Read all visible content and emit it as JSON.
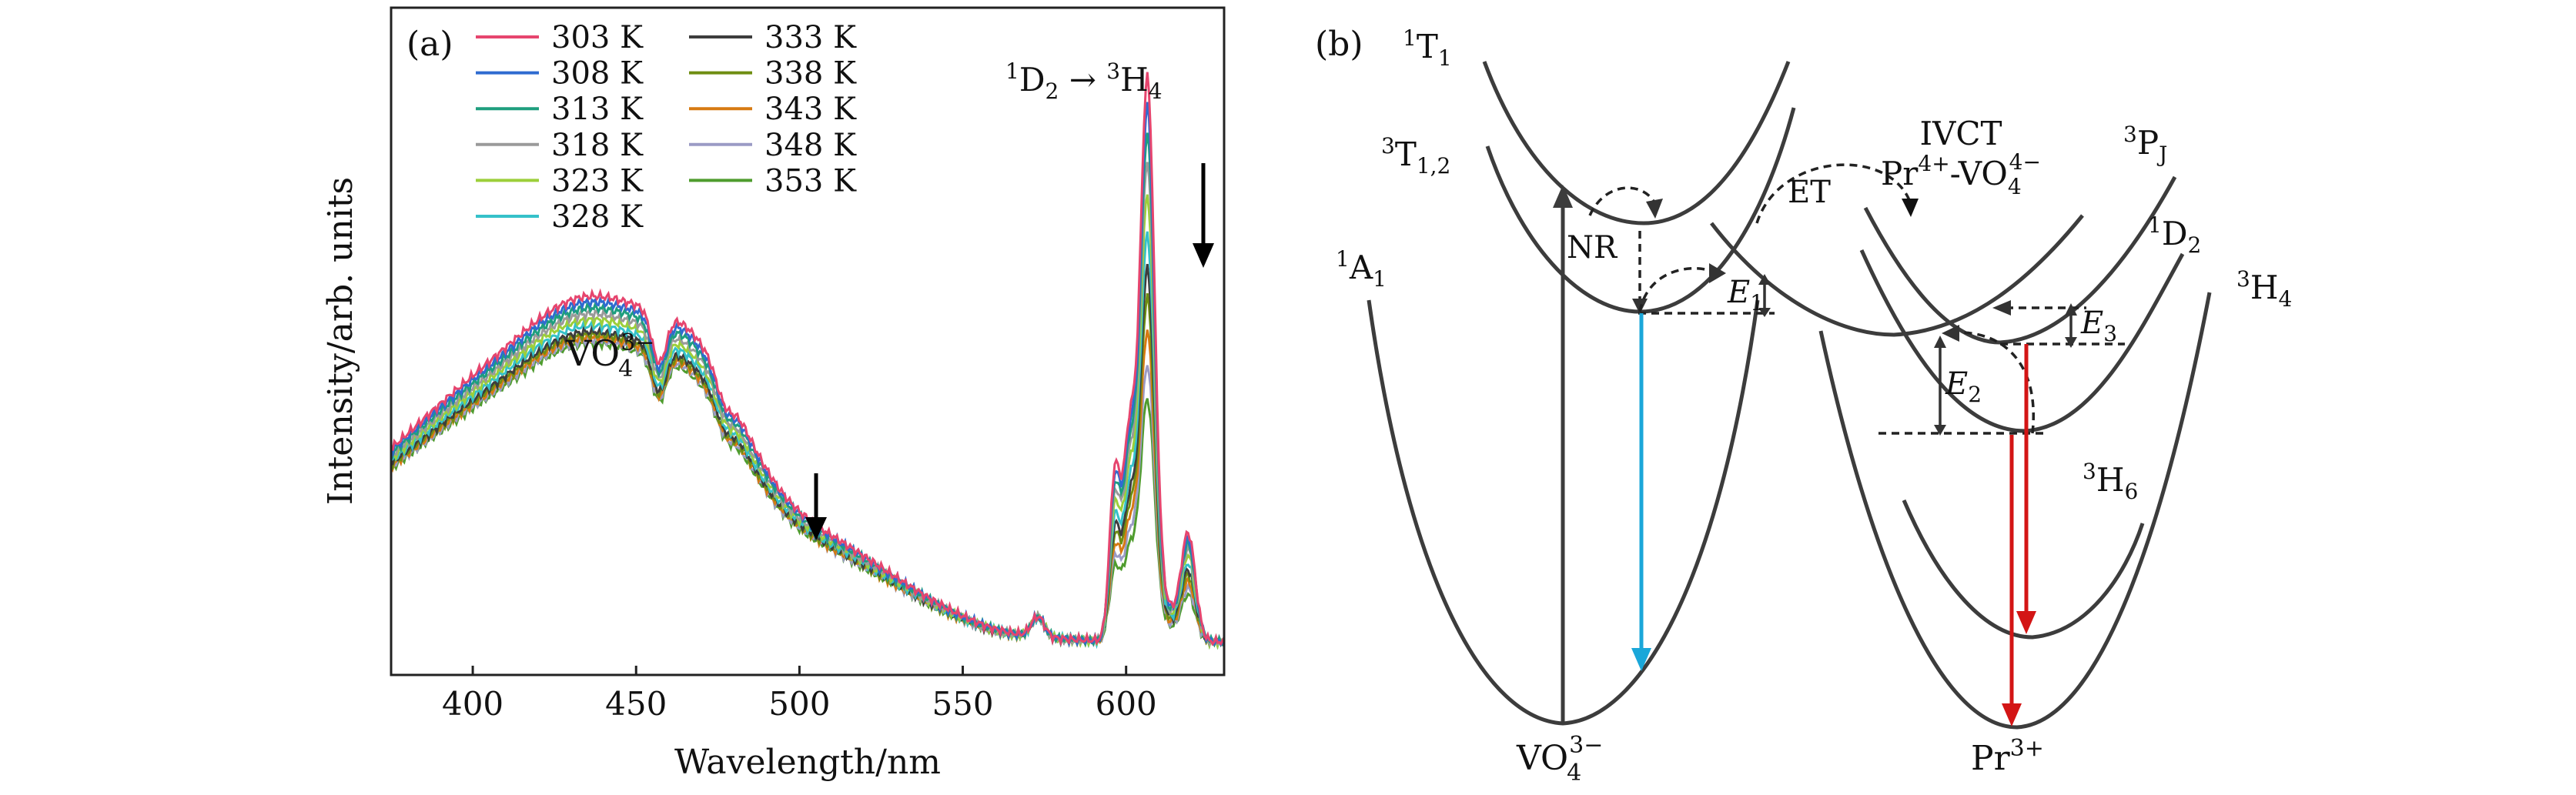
{
  "colors": {
    "303 K": "#e6456e",
    "308 K": "#2f6bd0",
    "313 K": "#1e9e7e",
    "318 K": "#9a9a9a",
    "323 K": "#9ccf3a",
    "328 K": "#35c1c9",
    "333 K": "#3d3d3d",
    "338 K": "#6f8e12",
    "343 K": "#d77a12",
    "348 K": "#9b9bc5",
    "353 K": "#4f9c2e",
    "blue_arrow": "#1aa7d9",
    "red_arrow": "#d31515"
  },
  "chart_data": [
    {
      "type": "line",
      "panel_label": "(a)",
      "xlabel": "Wavelength/nm",
      "ylabel": "Intensity/arb. units",
      "xlim": [
        375,
        630
      ],
      "ylim": [
        0,
        1.0
      ],
      "xticks": [
        400,
        450,
        500,
        550,
        600
      ],
      "yticks_shown": false,
      "grid": false,
      "legend": {
        "placement": "top-left",
        "columns": [
          [
            "303 K",
            "308 K",
            "313 K",
            "318 K",
            "323 K",
            "328 K"
          ],
          [
            "333 K",
            "338 K",
            "343 K",
            "348 K",
            "353 K"
          ]
        ]
      },
      "annotations": [
        {
          "text": "VO₄³⁻",
          "near_x": 440
        },
        {
          "text": "¹D₂ → ³H₄",
          "near_x": 606
        },
        {
          "text": "↓",
          "near_x": 505,
          "meaning": "intensity decreases with temperature"
        },
        {
          "text": "↓",
          "near_x": 619,
          "meaning": "intensity decreases with temperature"
        }
      ],
      "series": [
        {
          "name": "303 K",
          "peak_vo4": 0.51,
          "peak_606": 1.0
        },
        {
          "name": "308 K",
          "peak_vo4": 0.5,
          "peak_606": 0.95
        },
        {
          "name": "313 K",
          "peak_vo4": 0.49,
          "peak_606": 0.9
        },
        {
          "name": "318 K",
          "peak_vo4": 0.48,
          "peak_606": 0.85
        },
        {
          "name": "323 K",
          "peak_vo4": 0.47,
          "peak_606": 0.79
        },
        {
          "name": "328 K",
          "peak_vo4": 0.46,
          "peak_606": 0.72
        },
        {
          "name": "333 K",
          "peak_vo4": 0.45,
          "peak_606": 0.66
        },
        {
          "name": "338 K",
          "peak_vo4": 0.445,
          "peak_606": 0.61
        },
        {
          "name": "343 K",
          "peak_vo4": 0.44,
          "peak_606": 0.55
        },
        {
          "name": "348 K",
          "peak_vo4": 0.435,
          "peak_606": 0.49
        },
        {
          "name": "353 K",
          "peak_vo4": 0.43,
          "peak_606": 0.43
        }
      ]
    },
    {
      "type": "diagram",
      "panel_label": "(b)",
      "labels": {
        "t1": "¹T₁",
        "t12": "³T₁,₂",
        "a1": "¹A₁",
        "nr": "NR",
        "et": "ET",
        "ivct1": "IVCT",
        "ivct2": "Pr⁴⁺-VO₄⁴⁻",
        "pj": "³P",
        "pj_sub": "J",
        "d2": "¹D₂",
        "h4": "³H₄",
        "h6": "³H₆",
        "e1": "E₁",
        "e2": "E₂",
        "e3": "E₃",
        "vo4": "VO₄³⁻",
        "pr": "Pr³⁺"
      }
    }
  ]
}
